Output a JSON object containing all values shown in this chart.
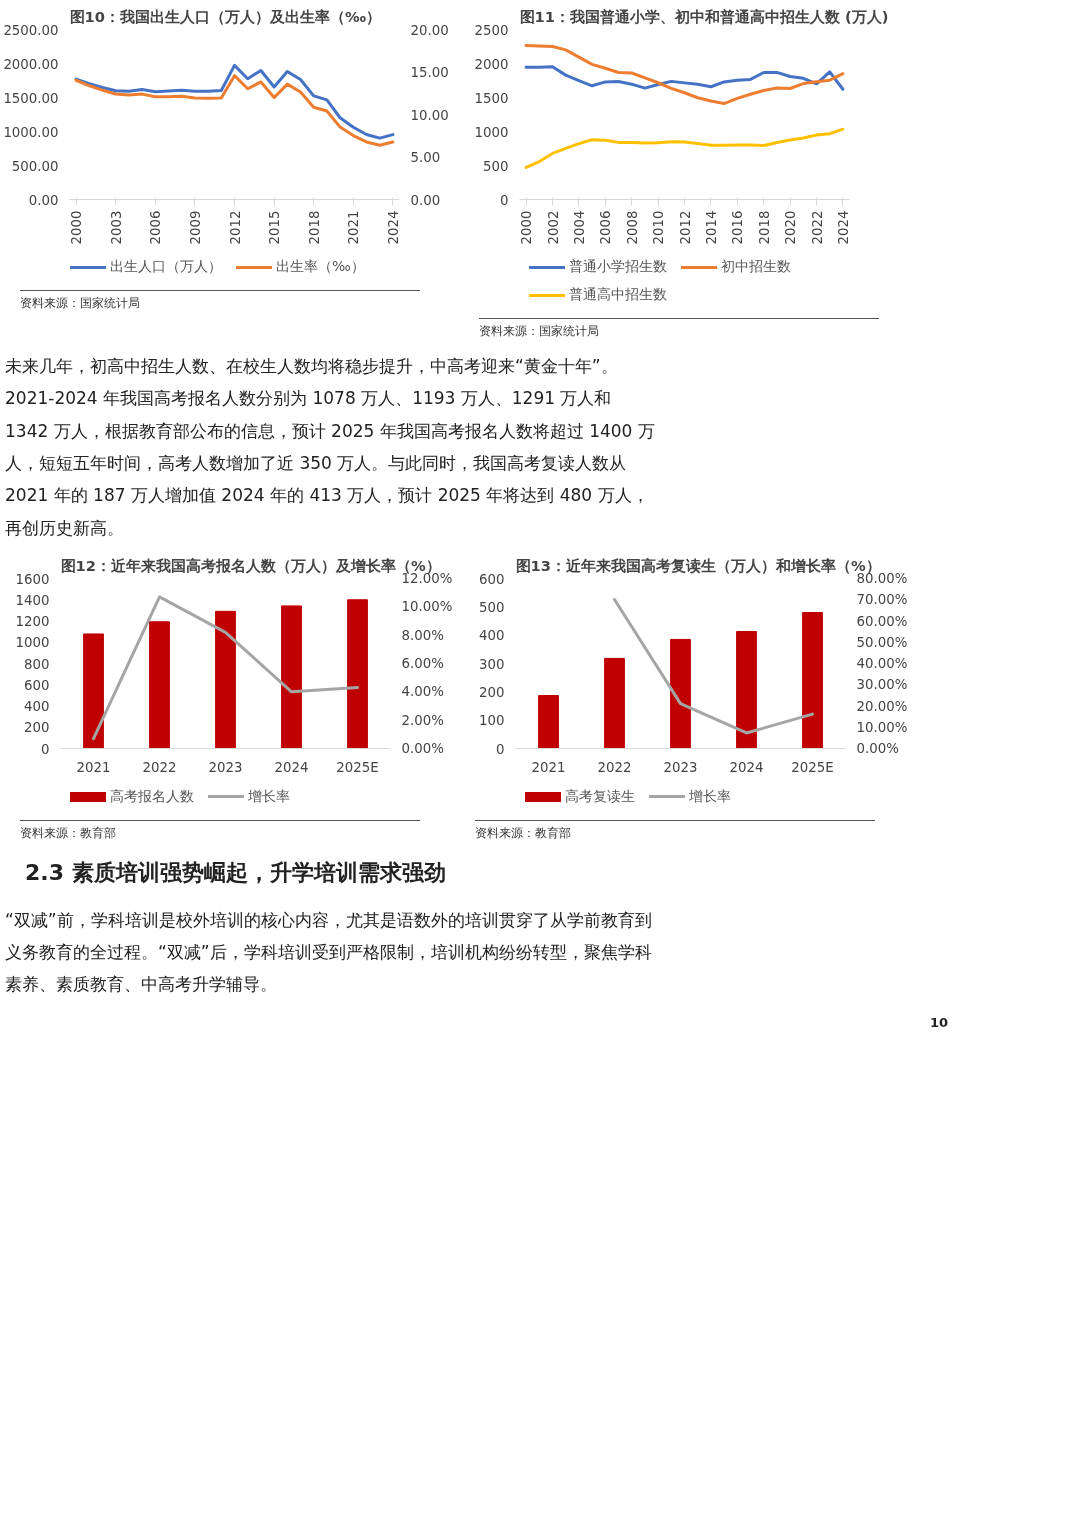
{
  "chart_data": [
    {
      "type": "line",
      "title": "图10：我国出生人口（万人）及出生率（‰）",
      "x": [
        2000,
        2001,
        2002,
        2003,
        2004,
        2005,
        2006,
        2007,
        2008,
        2009,
        2010,
        2011,
        2012,
        2013,
        2014,
        2015,
        2016,
        2017,
        2018,
        2019,
        2020,
        2021,
        2022,
        2023,
        2024
      ],
      "xlim": [
        1999.5,
        2024.5
      ],
      "xticks": [
        2000,
        2003,
        2006,
        2009,
        2012,
        2015,
        2018,
        2021,
        2024
      ],
      "series": [
        {
          "name": "出生人口（万人）",
          "color": "#4472c4",
          "values": [
            1771,
            1702,
            1647,
            1599,
            1593,
            1617,
            1585,
            1595,
            1608,
            1591,
            1592,
            1604,
            1973,
            1776,
            1897,
            1655,
            1883,
            1765,
            1523,
            1465,
            1202,
            1062,
            956,
            902,
            954
          ]
        },
        {
          "name": "出生率（‰）",
          "color": "#ed7d31",
          "axis": "y2",
          "values": [
            14.03,
            13.38,
            12.86,
            12.41,
            12.29,
            12.4,
            12.09,
            12.1,
            12.14,
            11.95,
            11.9,
            11.93,
            14.57,
            13.03,
            13.83,
            11.99,
            13.57,
            12.64,
            10.86,
            10.41,
            8.52,
            7.52,
            6.77,
            6.39,
            6.77
          ]
        }
      ],
      "ylim": [
        0,
        2500
      ],
      "yticks": [
        {
          "value": 0,
          "label": "0.00"
        },
        {
          "value": 500,
          "label": "500.00"
        },
        {
          "value": 1000,
          "label": "1000.00"
        },
        {
          "value": 1500,
          "label": "1500.00"
        },
        {
          "value": 2000,
          "label": "2000.00"
        },
        {
          "value": 2500,
          "label": "2500.00"
        }
      ],
      "y2lim": [
        0,
        20
      ],
      "y2ticks": [
        {
          "value": 0,
          "label": "0.00"
        },
        {
          "value": 5,
          "label": "5.00"
        },
        {
          "value": 10,
          "label": "10.00"
        },
        {
          "value": 15,
          "label": "15.00"
        },
        {
          "value": 20,
          "label": "20.00"
        }
      ],
      "legend": "bottom",
      "annotations": [
        "资料来源：国家统计局"
      ]
    },
    {
      "type": "line",
      "title": "图11：我国普通小学、初中和普通高中招生人数 (万人)",
      "x": [
        2000,
        2001,
        2002,
        2003,
        2004,
        2005,
        2006,
        2007,
        2008,
        2009,
        2010,
        2011,
        2012,
        2013,
        2014,
        2015,
        2016,
        2017,
        2018,
        2019,
        2020,
        2021,
        2022,
        2023,
        2024
      ],
      "xlim": [
        1999.5,
        2024.5
      ],
      "xticks": [
        2000,
        2002,
        2004,
        2006,
        2008,
        2010,
        2012,
        2014,
        2016,
        2018,
        2020,
        2022,
        2024
      ],
      "series": [
        {
          "name": "普通小学招生数",
          "color": "#4472c4",
          "values": [
            1946,
            1944,
            1953,
            1829,
            1747,
            1672,
            1729,
            1736,
            1696,
            1638,
            1692,
            1737,
            1715,
            1695,
            1658,
            1729,
            1752,
            1766,
            1867,
            1869,
            1808,
            1782,
            1701,
            1877,
            1621
          ]
        },
        {
          "name": "初中招生数",
          "color": "#ed7d31",
          "values": [
            2263,
            2258,
            2250,
            2200,
            2094,
            1987,
            1930,
            1868,
            1860,
            1789,
            1717,
            1635,
            1570,
            1496,
            1448,
            1411,
            1487,
            1547,
            1603,
            1639,
            1632,
            1705,
            1731,
            1755,
            1850
          ]
        },
        {
          "name": "普通高中招生数",
          "color": "#ffc000",
          "values": [
            473,
            558,
            677,
            752,
            822,
            878,
            871,
            840,
            837,
            830,
            836,
            851,
            845,
            823,
            797,
            797,
            803,
            800,
            793,
            839,
            876,
            905,
            947,
            967,
            1034
          ]
        }
      ],
      "ylim": [
        0,
        2500
      ],
      "yticks": [
        0,
        500,
        1000,
        1500,
        2000,
        2500
      ],
      "legend": "bottom",
      "annotations": [
        "资料来源：国家统计局",
        "未来几年，初高中招生人数、在校生人数均将稳步提升，中高考迎来“黄金十年”。2021-2024 年我国高考报名人数分别为 1078 万人、1193 万人、1291 万人和 1342 万人，根据教育部公布的信息，预计 2025 年我国高考报名人数将超过 1400 万人，短短五年时间，高考人数增加了近 350 万人。与此同时，我国高考复读人数从 2021 年的 187 万人增加值 2024 年的 413 万人，预计 2025 年将达到 480 万人，再创历史新高。"
      ]
    },
    {
      "type": "bar",
      "title": "图12：近年来我国高考报名人数（万人）及增长率（%）",
      "categories": [
        "2021",
        "2022",
        "2023",
        "2024",
        "2025E"
      ],
      "series": [
        {
          "name": "高考报名人数",
          "color": "#c00000",
          "type": "bar",
          "values": [
            1078,
            1193,
            1291,
            1342,
            1400
          ]
        },
        {
          "name": "增长率",
          "color": "#a5a5a5",
          "type": "line",
          "axis": "y2",
          "values": [
            0.7,
            10.7,
            8.2,
            4.0,
            4.3
          ]
        }
      ],
      "ylim": [
        0,
        1600
      ],
      "yticks": [
        0,
        200,
        400,
        600,
        800,
        1000,
        1200,
        1400,
        1600
      ],
      "y2lim": [
        0,
        12
      ],
      "y2ticks": [
        {
          "value": 0,
          "label": "0.00%"
        },
        {
          "value": 2,
          "label": "2.00%"
        },
        {
          "value": 4,
          "label": "4.00%"
        },
        {
          "value": 6,
          "label": "6.00%"
        },
        {
          "value": 8,
          "label": "8.00%"
        },
        {
          "value": 10,
          "label": "10.00%"
        },
        {
          "value": 12,
          "label": "12.00%"
        }
      ],
      "legend": "bottom",
      "annotations": [
        "资料来源：教育部"
      ]
    },
    {
      "type": "bar",
      "title": "图13：近年来我国高考复读生（万人）和增长率（%）",
      "categories": [
        "2021",
        "2022",
        "2023",
        "2024",
        "2025E"
      ],
      "series": [
        {
          "name": "高考复读生",
          "color": "#c00000",
          "type": "bar",
          "values": [
            187,
            318,
            385,
            413,
            480
          ]
        },
        {
          "name": "增长率",
          "color": "#a5a5a5",
          "type": "line",
          "axis": "y2",
          "values": [
            null,
            70.1,
            21.1,
            7.3,
            16.2
          ]
        }
      ],
      "ylim": [
        0,
        600
      ],
      "yticks": [
        0,
        100,
        200,
        300,
        400,
        500,
        600
      ],
      "y2lim": [
        0,
        80
      ],
      "y2ticks": [
        {
          "value": 0,
          "label": "0.00%"
        },
        {
          "value": 10,
          "label": "10.00%"
        },
        {
          "value": 20,
          "label": "20.00%"
        },
        {
          "value": 30,
          "label": "30.00%"
        },
        {
          "value": 40,
          "label": "40.00%"
        },
        {
          "value": 50,
          "label": "50.00%"
        },
        {
          "value": 60,
          "label": "60.00%"
        },
        {
          "value": 70,
          "label": "70.00%"
        },
        {
          "value": 80,
          "label": "80.00%"
        }
      ],
      "legend": "bottom",
      "annotations": [
        "资料来源：教育部",
        "2.3 素质培训强势崛起，升学培训需求强劲",
        "“双减”前，学科培训是校外培训的核心内容，尤其是语数外的培训贯穿了从学前教育到义务教育的全过程。“双减”后，学科培训受到严格限制，培训机构纷纷转型，聚焦学科素养、素质教育、中高考升学辅导。",
        "10"
      ]
    }
  ]
}
